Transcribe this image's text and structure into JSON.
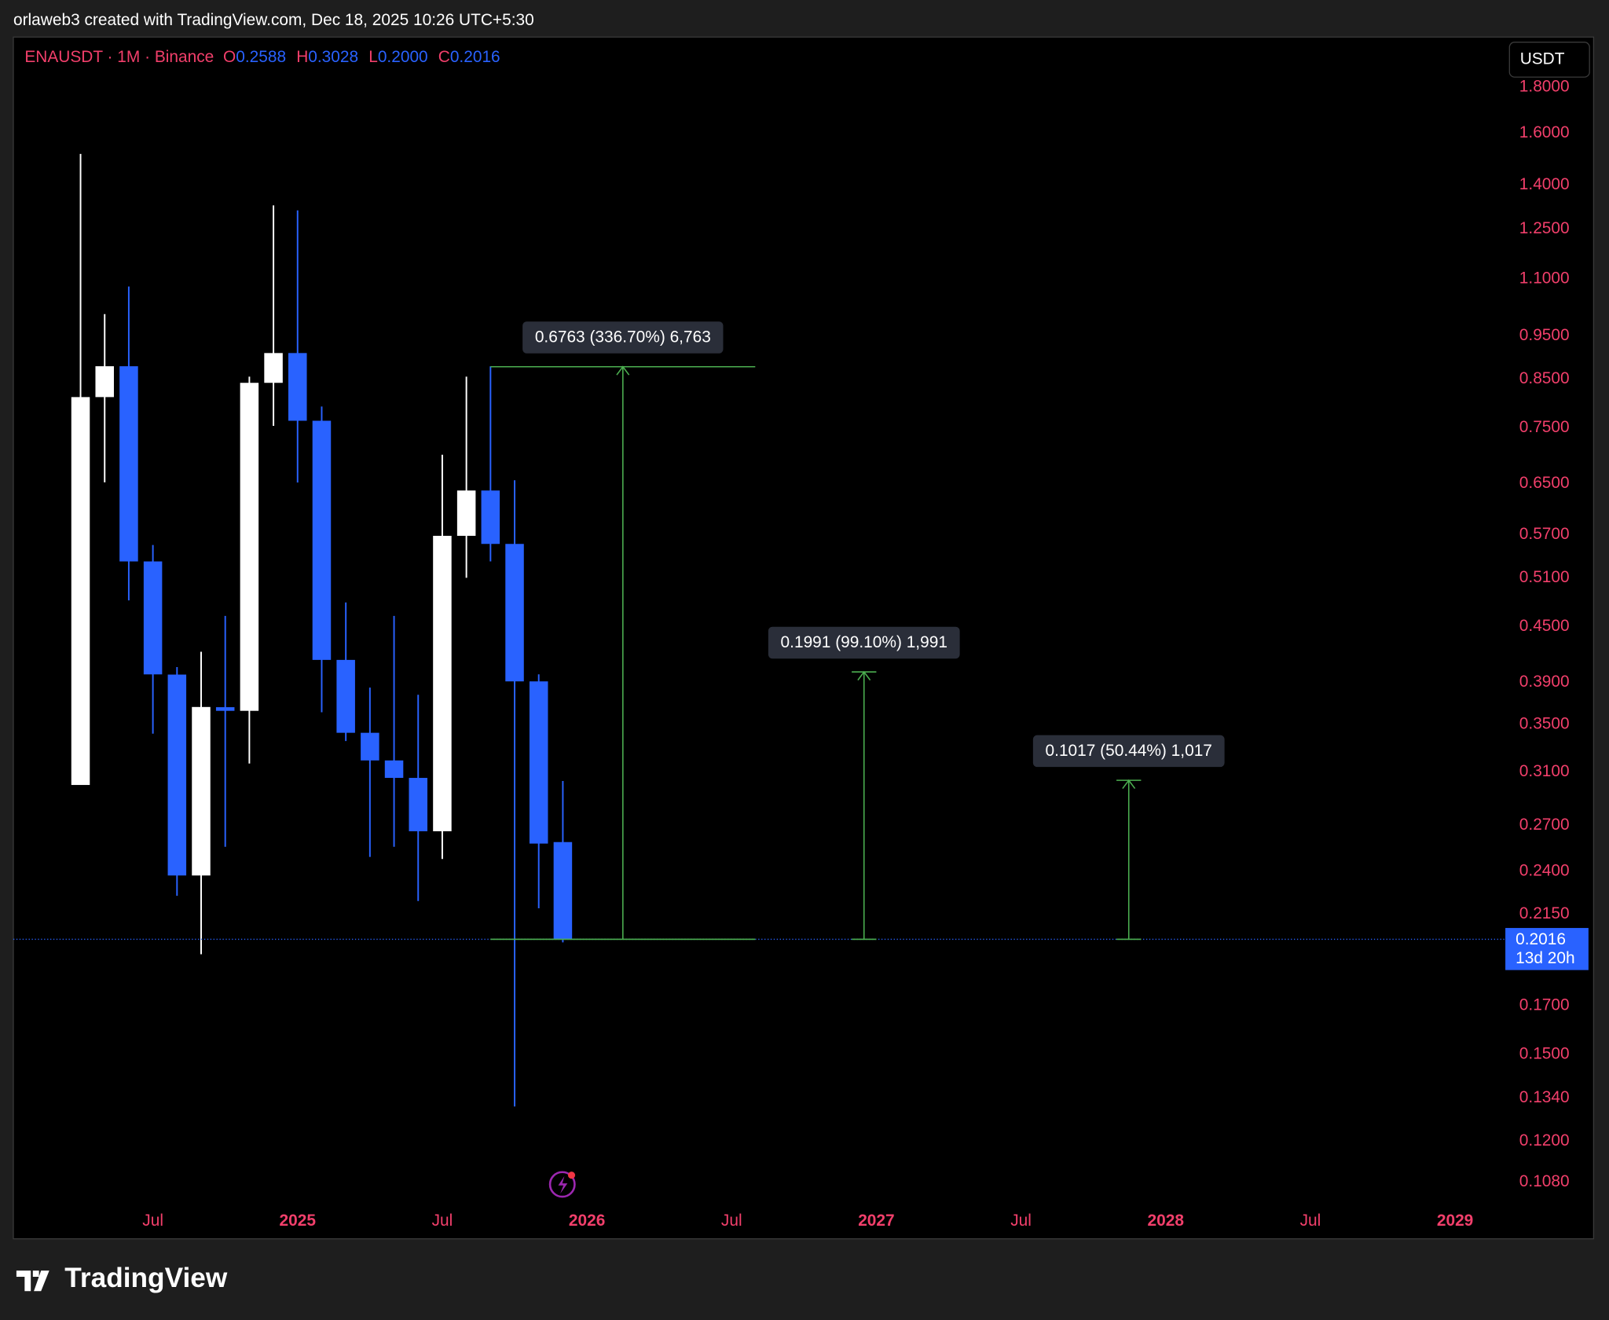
{
  "header": {
    "text": "orlaweb3 created with TradingView.com, Dec 18, 2025 10:26 UTC+5:30"
  },
  "footer": {
    "brand": "TradingView"
  },
  "chart_data": {
    "type": "candlestick",
    "legend": {
      "symbol": "ENAUSDT · 1M · Binance",
      "items": [
        {
          "key": "O",
          "label": "0.2588"
        },
        {
          "key": "H",
          "label": "0.3028"
        },
        {
          "key": "L",
          "label": "0.2000"
        },
        {
          "key": "C",
          "label": "0.2016"
        }
      ]
    },
    "currency": "USDT",
    "countdown": "13d 20h",
    "log_scale": true,
    "up_color": "#ffffff",
    "down_color": "#2962ff",
    "x": [
      "2024-04",
      "2024-05",
      "2024-06",
      "2024-07",
      "2024-08",
      "2024-09",
      "2024-10",
      "2024-11",
      "2024-12",
      "2025-01",
      "2025-02",
      "2025-03",
      "2025-04",
      "2025-05",
      "2025-06",
      "2025-07",
      "2025-08",
      "2025-09",
      "2025-10",
      "2025-11",
      "2025-12"
    ],
    "open": [
      0.2997,
      0.812,
      0.879,
      0.5323,
      0.398,
      0.2375,
      0.366,
      0.3626,
      0.8423,
      0.9093,
      0.7641,
      0.4133,
      0.3427,
      0.3192,
      0.3052,
      0.2661,
      0.5685,
      0.6387,
      0.5568,
      0.3911,
      0.2588
    ],
    "high": [
      1.517,
      1.005,
      1.079,
      0.5553,
      0.4057,
      0.422,
      0.4628,
      0.8557,
      1.329,
      1.312,
      0.7925,
      0.479,
      0.3849,
      0.4628,
      0.3779,
      0.7002,
      0.8557,
      0.8787,
      0.6558,
      0.3982,
      0.3028
    ],
    "low": [
      0.2997,
      0.6523,
      0.4816,
      0.3419,
      0.2254,
      0.194,
      0.2557,
      0.3167,
      0.7541,
      0.652,
      0.3613,
      0.3355,
      0.2491,
      0.2557,
      0.2224,
      0.2478,
      0.5104,
      0.5323,
      0.1312,
      0.2183,
      0.2
    ],
    "close": [
      0.812,
      0.879,
      0.5323,
      0.3982,
      0.2375,
      0.3662,
      0.3626,
      0.8423,
      0.9093,
      0.7641,
      0.4133,
      0.3427,
      0.3192,
      0.3052,
      0.2661,
      0.5685,
      0.6387,
      0.5568,
      0.3911,
      0.2578,
      0.2016
    ],
    "measurements": [
      {
        "label": "0.6763 (336.70%) 6,763",
        "value": 0.6763
      },
      {
        "label": "0.1991 (99.10%) 1,991",
        "value": 0.1991
      },
      {
        "label": "0.1017 (50.44%) 1,017",
        "value": 0.1017
      }
    ],
    "xlim": [
      "2024-01",
      "2029-03"
    ],
    "xticks": [
      {
        "value": "2024-07",
        "label": "Jul"
      },
      {
        "value": "2025-01",
        "label": "2025"
      },
      {
        "value": "2025-07",
        "label": "Jul"
      },
      {
        "value": "2026-01",
        "label": "2026"
      },
      {
        "value": "2026-07",
        "label": "Jul"
      },
      {
        "value": "2027-01",
        "label": "2027"
      },
      {
        "value": "2027-07",
        "label": "Jul"
      },
      {
        "value": "2028-01",
        "label": "2028"
      },
      {
        "value": "2028-07",
        "label": "Jul"
      },
      {
        "value": "2029-01",
        "label": "2029"
      }
    ],
    "ylim": [
      0.1024,
      2.048
    ],
    "yticks": [
      {
        "value": 1.8,
        "label": "1.8000"
      },
      {
        "value": 1.6,
        "label": "1.6000"
      },
      {
        "value": 1.4,
        "label": "1.4000"
      },
      {
        "value": 1.25,
        "label": "1.2500"
      },
      {
        "value": 1.1,
        "label": "1.1000"
      },
      {
        "value": 0.95,
        "label": "0.9500"
      },
      {
        "value": 0.85,
        "label": "0.8500"
      },
      {
        "value": 0.75,
        "label": "0.7500"
      },
      {
        "value": 0.65,
        "label": "0.6500"
      },
      {
        "value": 0.57,
        "label": "0.5700"
      },
      {
        "value": 0.51,
        "label": "0.5100"
      },
      {
        "value": 0.45,
        "label": "0.4500"
      },
      {
        "value": 0.39,
        "label": "0.3900"
      },
      {
        "value": 0.35,
        "label": "0.3500"
      },
      {
        "value": 0.31,
        "label": "0.3100"
      },
      {
        "value": 0.27,
        "label": "0.2700"
      },
      {
        "value": 0.24,
        "label": "0.2400"
      },
      {
        "value": 0.215,
        "label": "0.2150"
      },
      {
        "value": 0.17,
        "label": "0.1700"
      },
      {
        "value": 0.15,
        "label": "0.1500"
      },
      {
        "value": 0.134,
        "label": "0.1340"
      },
      {
        "value": 0.12,
        "label": "0.1200"
      },
      {
        "value": 0.108,
        "label": "0.1080"
      }
    ]
  }
}
